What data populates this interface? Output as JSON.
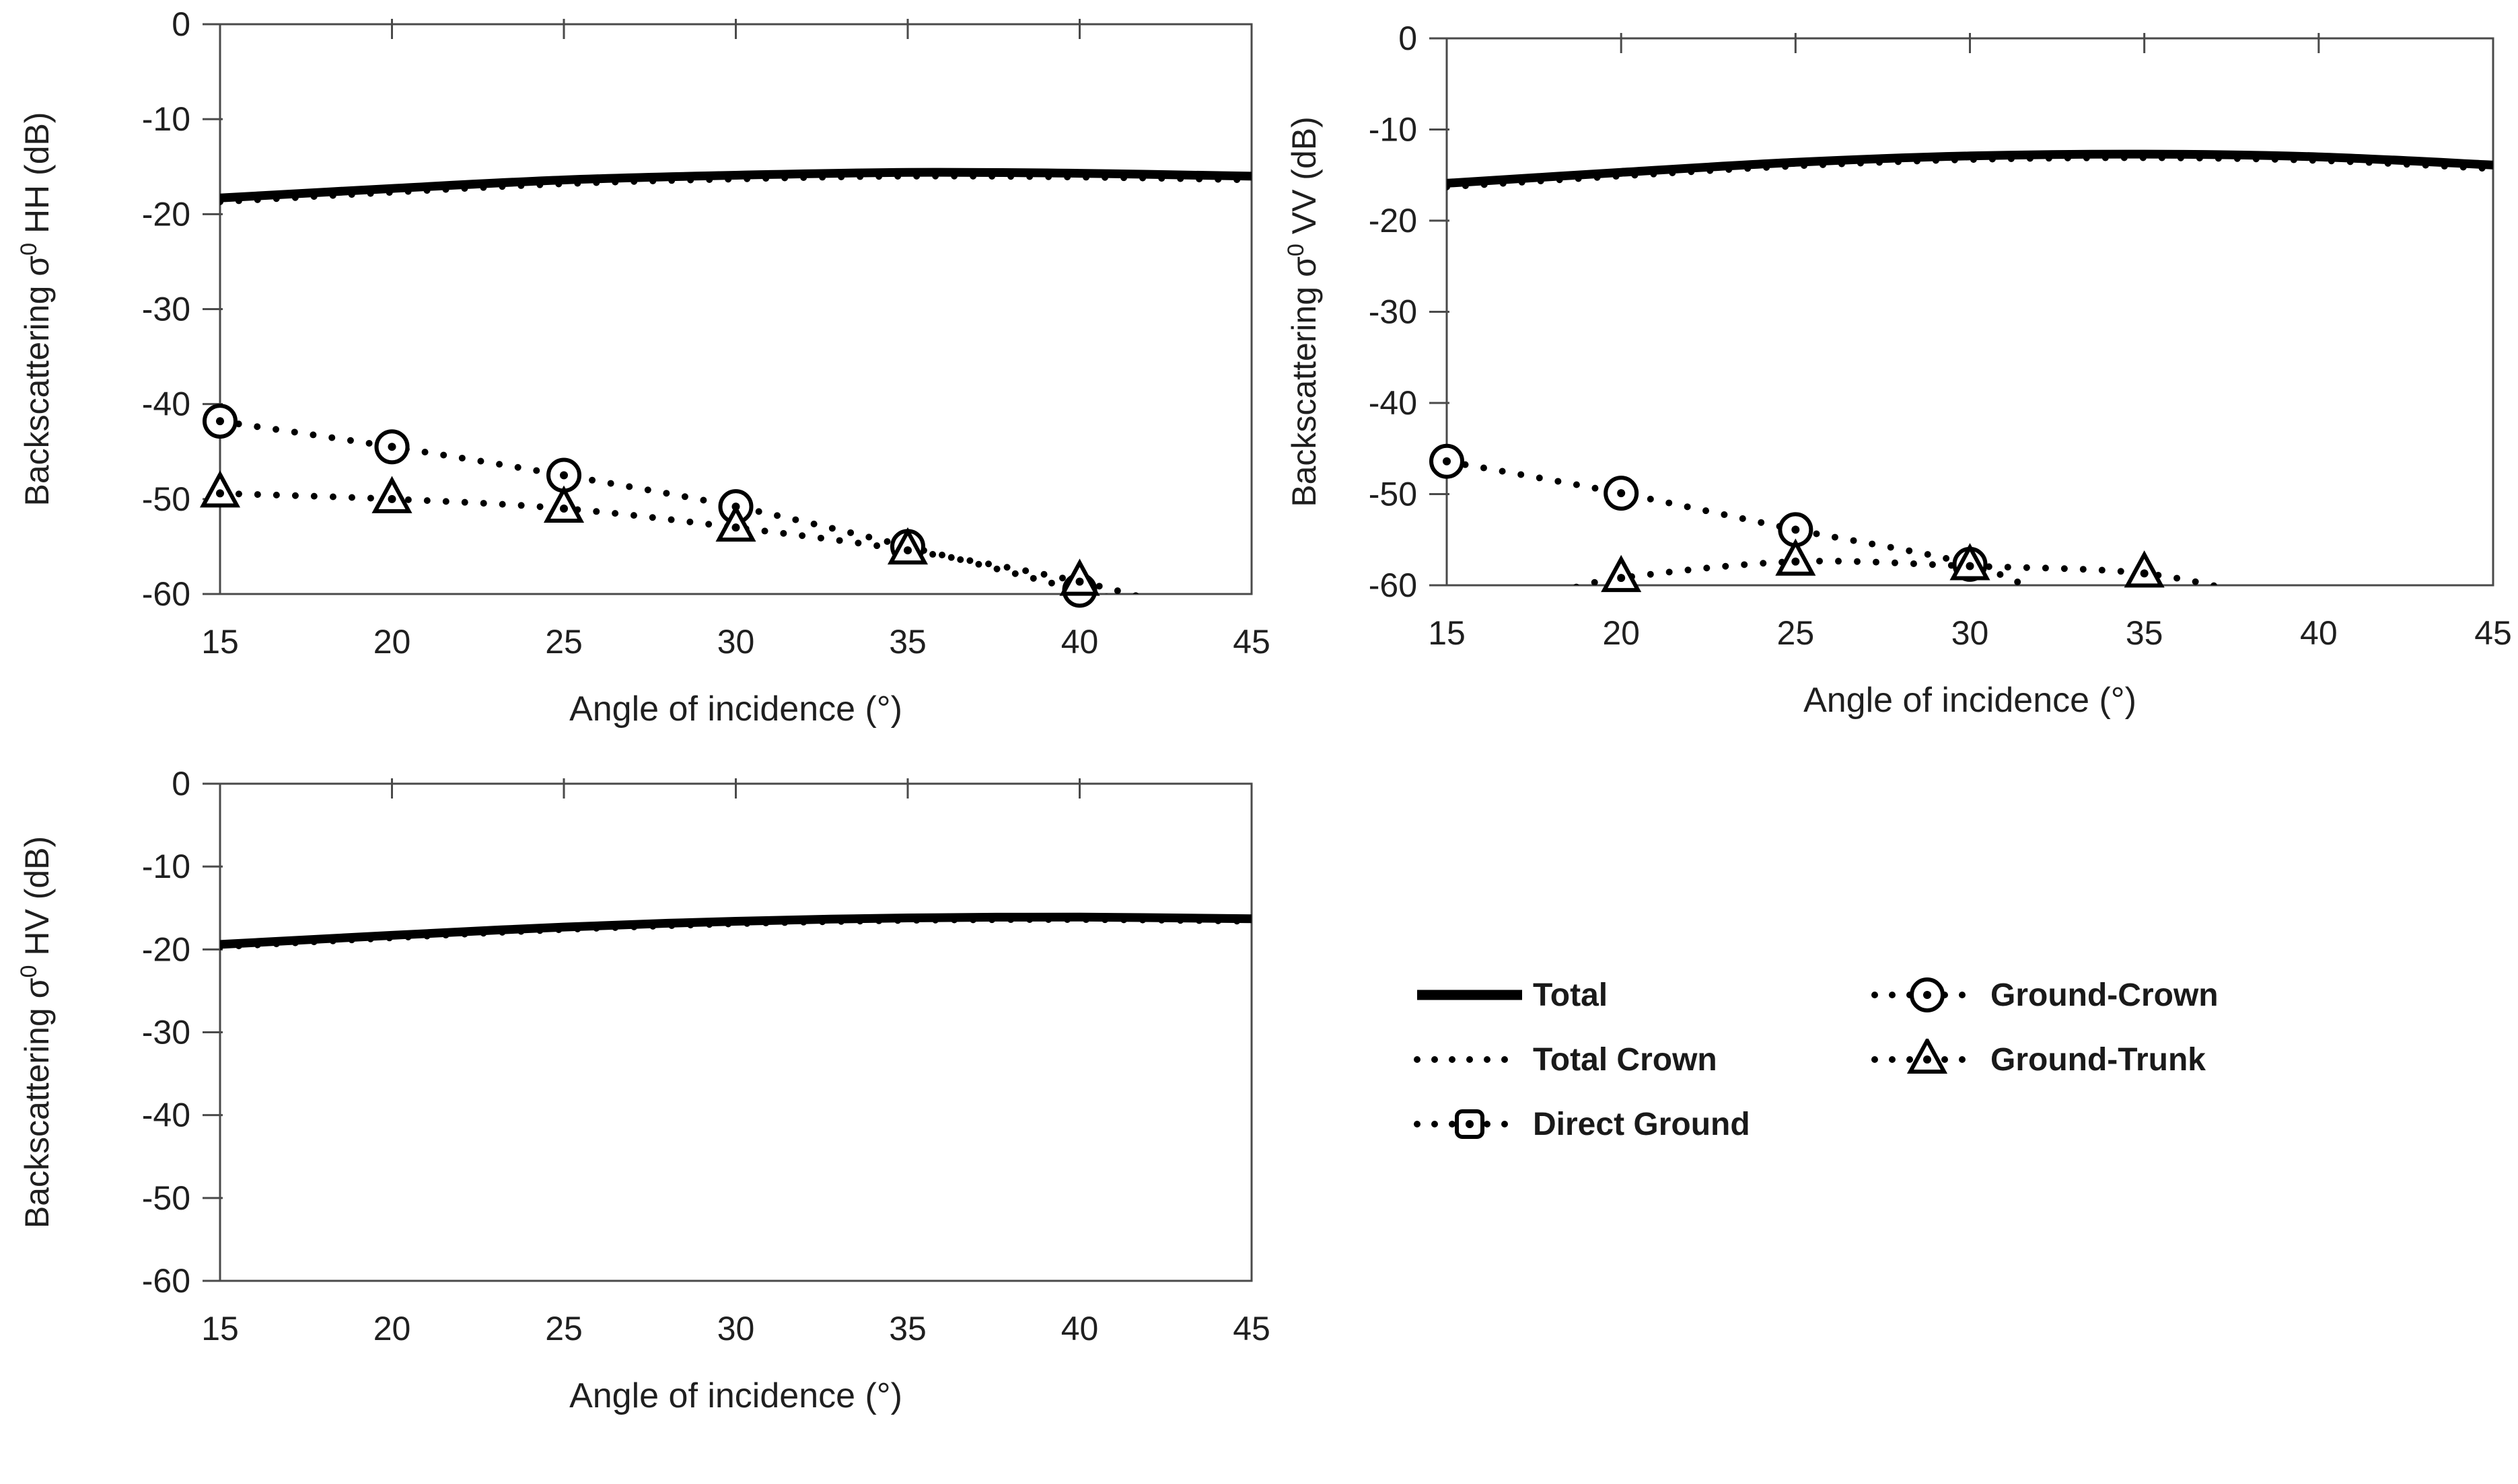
{
  "figure": {
    "background": "#ffffff",
    "line_color": "#000000",
    "border_color": "#4a4a4a",
    "text_color": "#1f1f1f"
  },
  "legend": {
    "columns": [
      {
        "items": [
          {
            "label": "Total",
            "style": "solid",
            "marker": "none"
          },
          {
            "label": "Total Crown",
            "style": "dotted",
            "marker": "none"
          },
          {
            "label": "Direct Ground",
            "style": "dotted",
            "marker": "square"
          }
        ]
      },
      {
        "items": [
          {
            "label": "Ground-Crown",
            "style": "dotted",
            "marker": "circle"
          },
          {
            "label": "Ground-Trunk",
            "style": "dotted",
            "marker": "triangle"
          }
        ]
      }
    ]
  },
  "chart_data": [
    {
      "id": "hh",
      "type": "line",
      "title": "",
      "xlabel": "Angle of incidence (°)",
      "ylabel": {
        "prefix": "Backscattering σ",
        "sup": "0",
        "suffix": " HH (dB)"
      },
      "xlim": [
        15,
        45
      ],
      "ylim": [
        -60,
        0
      ],
      "xticks": [
        15,
        20,
        25,
        30,
        35,
        40,
        45
      ],
      "yticks": [
        0,
        -10,
        -20,
        -30,
        -40,
        -50,
        -60
      ],
      "grid": false,
      "series": [
        {
          "name": "Total",
          "style": "solid",
          "marker": "none",
          "line": [
            [
              15,
              -18.3
            ],
            [
              20,
              -17.3
            ],
            [
              25,
              -16.4
            ],
            [
              30,
              -15.9
            ],
            [
              35,
              -15.6
            ],
            [
              40,
              -15.7
            ],
            [
              45,
              -16.0
            ]
          ],
          "points": []
        },
        {
          "name": "Total Crown",
          "style": "dotted",
          "marker": "none",
          "line": [
            [
              15,
              -18.7
            ],
            [
              20,
              -17.7
            ],
            [
              25,
              -16.8
            ],
            [
              30,
              -16.3
            ],
            [
              35,
              -16.0
            ],
            [
              40,
              -16.1
            ],
            [
              45,
              -16.4
            ]
          ],
          "points": []
        },
        {
          "name": "Ground-Crown",
          "style": "dotted",
          "marker": "circle",
          "line": [
            [
              15,
              -41.8
            ],
            [
              20,
              -44.5
            ],
            [
              25,
              -47.5
            ],
            [
              30,
              -50.8
            ],
            [
              35,
              -55.0
            ],
            [
              40,
              -59.6
            ],
            [
              42.6,
              -62.0
            ]
          ],
          "points": [
            [
              15,
              -41.8
            ],
            [
              20,
              -44.5
            ],
            [
              25,
              -47.5
            ],
            [
              30,
              -50.8
            ],
            [
              35,
              -55.0
            ],
            [
              40,
              -59.6
            ]
          ]
        },
        {
          "name": "Ground-Trunk",
          "style": "dotted",
          "marker": "triangle",
          "line": [
            [
              15,
              -49.4
            ],
            [
              20,
              -50.0
            ],
            [
              25,
              -51.0
            ],
            [
              30,
              -53.0
            ],
            [
              35,
              -55.4
            ],
            [
              40,
              -58.7
            ],
            [
              43.4,
              -62.0
            ]
          ],
          "points": [
            [
              15,
              -49.4
            ],
            [
              20,
              -50.0
            ],
            [
              25,
              -51.0
            ],
            [
              30,
              -53.0
            ],
            [
              35,
              -55.4
            ],
            [
              40,
              -58.7
            ]
          ]
        }
      ]
    },
    {
      "id": "vv",
      "type": "line",
      "title": "",
      "xlabel": "Angle of incidence (°)",
      "ylabel": {
        "prefix": "Backscattering σ",
        "sup": "0",
        "suffix": " VV (dB)"
      },
      "xlim": [
        15,
        45
      ],
      "ylim": [
        -60,
        0
      ],
      "xticks": [
        15,
        20,
        25,
        30,
        35,
        40,
        45
      ],
      "yticks": [
        0,
        -10,
        -20,
        -30,
        -40,
        -50,
        -60
      ],
      "grid": false,
      "series": [
        {
          "name": "Total",
          "style": "solid",
          "marker": "none",
          "line": [
            [
              15,
              -15.9
            ],
            [
              20,
              -14.7
            ],
            [
              25,
              -13.6
            ],
            [
              30,
              -12.9
            ],
            [
              35,
              -12.7
            ],
            [
              40,
              -13.0
            ],
            [
              45,
              -13.9
            ]
          ],
          "points": []
        },
        {
          "name": "Total Crown",
          "style": "dotted",
          "marker": "none",
          "line": [
            [
              15,
              -16.3
            ],
            [
              20,
              -15.1
            ],
            [
              25,
              -14.0
            ],
            [
              30,
              -13.3
            ],
            [
              35,
              -13.1
            ],
            [
              40,
              -13.4
            ],
            [
              45,
              -14.3
            ]
          ],
          "points": []
        },
        {
          "name": "Ground-Crown",
          "style": "dotted",
          "marker": "circle",
          "line": [
            [
              15,
              -46.4
            ],
            [
              20,
              -49.9
            ],
            [
              25,
              -53.9
            ],
            [
              30,
              -57.7
            ],
            [
              32.6,
              -62.0
            ]
          ],
          "points": [
            [
              15,
              -46.4
            ],
            [
              20,
              -49.9
            ],
            [
              25,
              -53.9
            ],
            [
              30,
              -57.7
            ]
          ]
        },
        {
          "name": "Ground-Trunk",
          "style": "dotted",
          "marker": "triangle",
          "line": [
            [
              18.2,
              -60.8
            ],
            [
              20,
              -59.2
            ],
            [
              25,
              -57.4
            ],
            [
              30,
              -57.9
            ],
            [
              35,
              -58.7
            ],
            [
              38.6,
              -61.5
            ]
          ],
          "points": [
            [
              20,
              -59.2
            ],
            [
              25,
              -57.4
            ],
            [
              30,
              -57.9
            ],
            [
              35,
              -58.7
            ]
          ]
        }
      ]
    },
    {
      "id": "hv",
      "type": "line",
      "title": "",
      "xlabel": "Angle of incidence (°)",
      "ylabel": {
        "prefix": "Backscattering σ",
        "sup": "0",
        "suffix": " HV (dB)"
      },
      "xlim": [
        15,
        45
      ],
      "ylim": [
        -60,
        0
      ],
      "xticks": [
        15,
        20,
        25,
        30,
        35,
        40,
        45
      ],
      "yticks": [
        0,
        -10,
        -20,
        -30,
        -40,
        -50,
        -60
      ],
      "grid": false,
      "series": [
        {
          "name": "Total",
          "style": "solid",
          "marker": "none",
          "line": [
            [
              15,
              -19.4
            ],
            [
              20,
              -18.3
            ],
            [
              25,
              -17.3
            ],
            [
              30,
              -16.6
            ],
            [
              35,
              -16.2
            ],
            [
              40,
              -16.1
            ],
            [
              45,
              -16.3
            ]
          ],
          "points": []
        },
        {
          "name": "Total Crown",
          "style": "dotted",
          "marker": "none",
          "line": [
            [
              15,
              -19.7
            ],
            [
              20,
              -18.6
            ],
            [
              25,
              -17.6
            ],
            [
              30,
              -16.9
            ],
            [
              35,
              -16.5
            ],
            [
              40,
              -16.4
            ],
            [
              45,
              -16.6
            ]
          ],
          "points": []
        }
      ]
    }
  ]
}
